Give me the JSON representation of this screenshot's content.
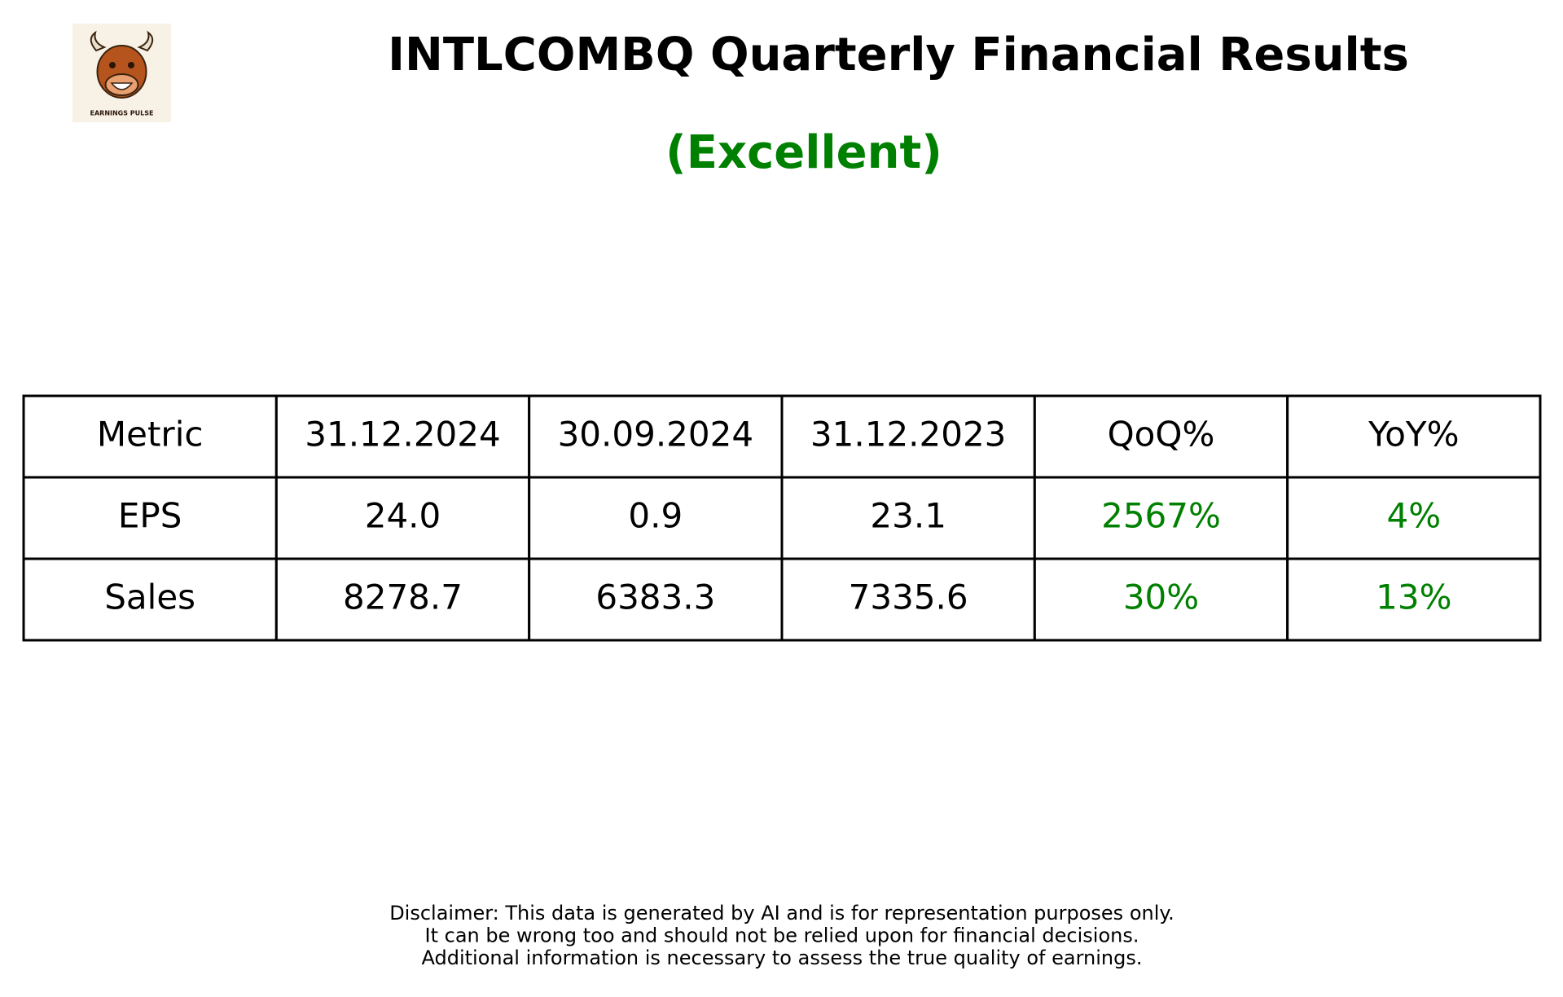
{
  "logo": {
    "text": "EARNINGS PULSE"
  },
  "header": {
    "title": "INTLCOMBQ Quarterly Financial Results",
    "subtitle": "(Excellent)"
  },
  "table": {
    "columns": [
      "Metric",
      "31.12.2024",
      "30.09.2024",
      "31.12.2023",
      "QoQ%",
      "YoY%"
    ],
    "rows": [
      [
        "EPS",
        "24.0",
        "0.9",
        "23.1",
        "2567%",
        "4%"
      ],
      [
        "Sales",
        "8278.7",
        "6383.3",
        "7335.6",
        "30%",
        "13%"
      ]
    ]
  },
  "disclaimer": [
    "Disclaimer: This data is generated by AI and is for representation purposes only.",
    "It can be wrong too and should not be relied upon for financial decisions.",
    "Additional information is necessary to assess the true quality of earnings."
  ]
}
